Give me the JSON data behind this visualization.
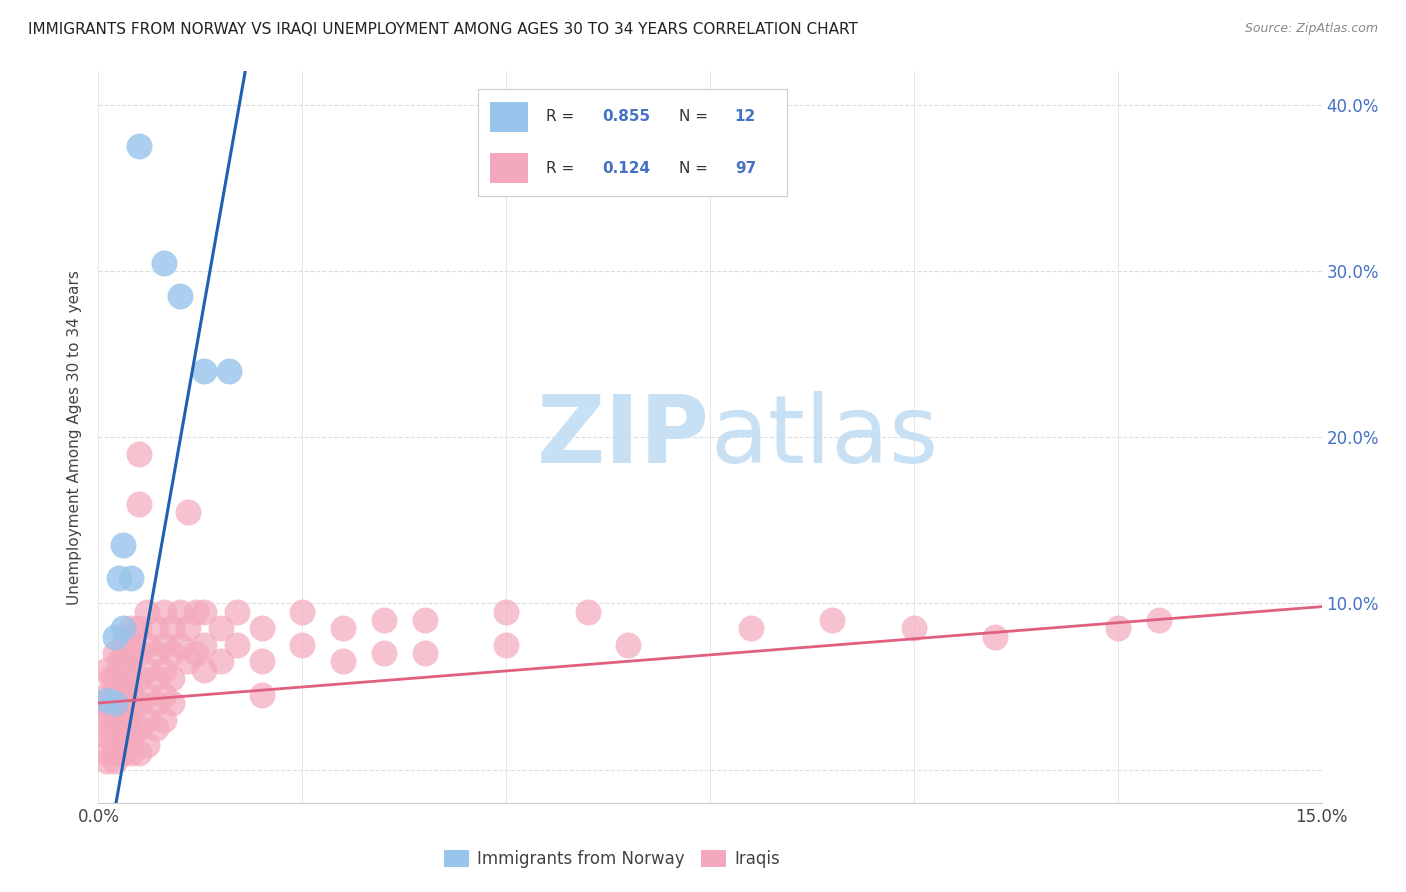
{
  "title": "IMMIGRANTS FROM NORWAY VS IRAQI UNEMPLOYMENT AMONG AGES 30 TO 34 YEARS CORRELATION CHART",
  "source": "Source: ZipAtlas.com",
  "ylabel": "Unemployment Among Ages 30 to 34 years",
  "xlim": [
    0.0,
    0.15
  ],
  "ylim": [
    -0.02,
    0.42
  ],
  "ytick_vals_right": [
    0.1,
    0.2,
    0.3,
    0.4
  ],
  "ytick_labels_right": [
    "10.0%",
    "20.0%",
    "30.0%",
    "40.0%"
  ],
  "norway_color": "#99c4eb",
  "iraq_color": "#f4a8bc",
  "norway_line_color": "#2060b0",
  "iraq_line_color": "#e06080",
  "norway_scatter": [
    [
      0.005,
      0.375
    ],
    [
      0.008,
      0.305
    ],
    [
      0.01,
      0.285
    ],
    [
      0.013,
      0.24
    ],
    [
      0.016,
      0.24
    ],
    [
      0.003,
      0.135
    ],
    [
      0.004,
      0.115
    ],
    [
      0.003,
      0.085
    ],
    [
      0.002,
      0.08
    ],
    [
      0.0025,
      0.115
    ],
    [
      0.001,
      0.042
    ],
    [
      0.002,
      0.04
    ]
  ],
  "iraq_scatter": [
    [
      0.0005,
      0.04
    ],
    [
      0.001,
      0.06
    ],
    [
      0.001,
      0.045
    ],
    [
      0.001,
      0.038
    ],
    [
      0.001,
      0.03
    ],
    [
      0.001,
      0.02
    ],
    [
      0.001,
      0.01
    ],
    [
      0.001,
      0.005
    ],
    [
      0.0015,
      0.055
    ],
    [
      0.0015,
      0.04
    ],
    [
      0.0015,
      0.03
    ],
    [
      0.0015,
      0.02
    ],
    [
      0.002,
      0.07
    ],
    [
      0.002,
      0.055
    ],
    [
      0.002,
      0.045
    ],
    [
      0.002,
      0.04
    ],
    [
      0.002,
      0.03
    ],
    [
      0.002,
      0.02
    ],
    [
      0.002,
      0.01
    ],
    [
      0.002,
      0.005
    ],
    [
      0.0025,
      0.065
    ],
    [
      0.0025,
      0.05
    ],
    [
      0.0025,
      0.04
    ],
    [
      0.0025,
      0.03
    ],
    [
      0.003,
      0.075
    ],
    [
      0.003,
      0.065
    ],
    [
      0.003,
      0.05
    ],
    [
      0.003,
      0.04
    ],
    [
      0.003,
      0.03
    ],
    [
      0.003,
      0.02
    ],
    [
      0.003,
      0.01
    ],
    [
      0.0035,
      0.08
    ],
    [
      0.0035,
      0.065
    ],
    [
      0.0035,
      0.05
    ],
    [
      0.0035,
      0.04
    ],
    [
      0.0035,
      0.03
    ],
    [
      0.0035,
      0.02
    ],
    [
      0.004,
      0.085
    ],
    [
      0.004,
      0.07
    ],
    [
      0.004,
      0.055
    ],
    [
      0.004,
      0.045
    ],
    [
      0.004,
      0.035
    ],
    [
      0.004,
      0.02
    ],
    [
      0.004,
      0.01
    ],
    [
      0.005,
      0.19
    ],
    [
      0.005,
      0.16
    ],
    [
      0.005,
      0.085
    ],
    [
      0.005,
      0.07
    ],
    [
      0.005,
      0.055
    ],
    [
      0.005,
      0.04
    ],
    [
      0.005,
      0.025
    ],
    [
      0.005,
      0.01
    ],
    [
      0.006,
      0.095
    ],
    [
      0.006,
      0.075
    ],
    [
      0.006,
      0.06
    ],
    [
      0.006,
      0.045
    ],
    [
      0.006,
      0.03
    ],
    [
      0.006,
      0.015
    ],
    [
      0.007,
      0.085
    ],
    [
      0.007,
      0.07
    ],
    [
      0.007,
      0.055
    ],
    [
      0.007,
      0.04
    ],
    [
      0.007,
      0.025
    ],
    [
      0.008,
      0.095
    ],
    [
      0.008,
      0.075
    ],
    [
      0.008,
      0.06
    ],
    [
      0.008,
      0.045
    ],
    [
      0.008,
      0.03
    ],
    [
      0.009,
      0.085
    ],
    [
      0.009,
      0.07
    ],
    [
      0.009,
      0.055
    ],
    [
      0.009,
      0.04
    ],
    [
      0.01,
      0.095
    ],
    [
      0.01,
      0.075
    ],
    [
      0.011,
      0.155
    ],
    [
      0.011,
      0.085
    ],
    [
      0.011,
      0.065
    ],
    [
      0.012,
      0.095
    ],
    [
      0.012,
      0.07
    ],
    [
      0.013,
      0.095
    ],
    [
      0.013,
      0.075
    ],
    [
      0.013,
      0.06
    ],
    [
      0.015,
      0.085
    ],
    [
      0.015,
      0.065
    ],
    [
      0.017,
      0.095
    ],
    [
      0.017,
      0.075
    ],
    [
      0.02,
      0.085
    ],
    [
      0.02,
      0.065
    ],
    [
      0.02,
      0.045
    ],
    [
      0.025,
      0.095
    ],
    [
      0.025,
      0.075
    ],
    [
      0.03,
      0.085
    ],
    [
      0.03,
      0.065
    ],
    [
      0.035,
      0.09
    ],
    [
      0.035,
      0.07
    ],
    [
      0.04,
      0.09
    ],
    [
      0.04,
      0.07
    ],
    [
      0.05,
      0.095
    ],
    [
      0.05,
      0.075
    ],
    [
      0.06,
      0.095
    ],
    [
      0.065,
      0.075
    ],
    [
      0.08,
      0.085
    ],
    [
      0.09,
      0.09
    ],
    [
      0.1,
      0.085
    ],
    [
      0.11,
      0.08
    ],
    [
      0.125,
      0.085
    ],
    [
      0.13,
      0.09
    ]
  ],
  "norway_line": [
    [
      0.0,
      -0.08
    ],
    [
      0.018,
      0.42
    ]
  ],
  "iraq_line": [
    [
      0.0,
      0.04
    ],
    [
      0.15,
      0.098
    ]
  ],
  "watermark_zip": "ZIP",
  "watermark_atlas": "atlas",
  "watermark_color": "#c8e0f4",
  "background_color": "#ffffff",
  "grid_color": "#dddddd",
  "title_color": "#222222",
  "label_color": "#444444",
  "right_axis_color": "#4472c4"
}
